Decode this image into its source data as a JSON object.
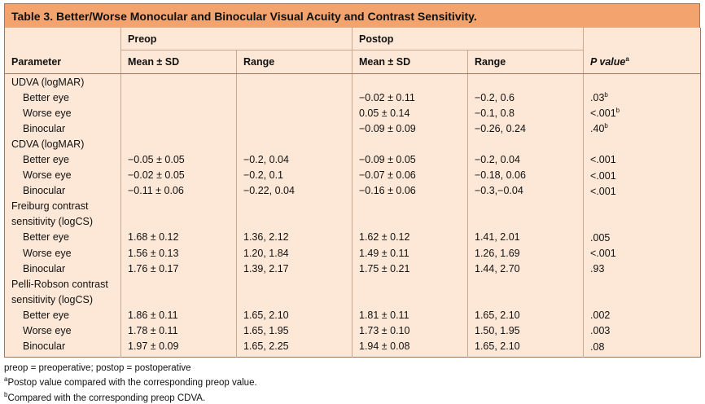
{
  "title": "Table 3.  Better/Worse Monocular and Binocular Visual Acuity and Contrast Sensitivity.",
  "header": {
    "preop": "Preop",
    "postop": "Postop",
    "parameter": "Parameter",
    "mean_sd": "Mean ± SD",
    "range": "Range",
    "p_value": "P value",
    "p_value_sup": "a"
  },
  "rows": [
    {
      "param": "UDVA (logMAR)",
      "group": true,
      "pre_mean": "",
      "pre_range": "",
      "post_mean": "",
      "post_range": "",
      "p": "",
      "p_sup": ""
    },
    {
      "param": "Better eye",
      "group": false,
      "pre_mean": "",
      "pre_range": "",
      "post_mean": "−0.02 ± 0.11",
      "post_range": "−0.2, 0.6",
      "p": ".03",
      "p_sup": "b"
    },
    {
      "param": "Worse eye",
      "group": false,
      "pre_mean": "",
      "pre_range": "",
      "post_mean": "0.05 ± 0.14",
      "post_range": "−0.1, 0.8",
      "p": "<.001",
      "p_sup": "b"
    },
    {
      "param": "Binocular",
      "group": false,
      "pre_mean": "",
      "pre_range": "",
      "post_mean": "−0.09 ± 0.09",
      "post_range": "−0.26, 0.24",
      "p": ".40",
      "p_sup": "b"
    },
    {
      "param": "CDVA (logMAR)",
      "group": true,
      "pre_mean": "",
      "pre_range": "",
      "post_mean": "",
      "post_range": "",
      "p": "",
      "p_sup": ""
    },
    {
      "param": "Better eye",
      "group": false,
      "pre_mean": "−0.05 ± 0.05",
      "pre_range": "−0.2, 0.04",
      "post_mean": "−0.09 ± 0.05",
      "post_range": "−0.2, 0.04",
      "p": "<.001",
      "p_sup": ""
    },
    {
      "param": "Worse eye",
      "group": false,
      "pre_mean": "−0.02 ± 0.05",
      "pre_range": "−0.2, 0.1",
      "post_mean": "−0.07 ± 0.06",
      "post_range": "−0.18, 0.06",
      "p": "<.001",
      "p_sup": ""
    },
    {
      "param": "Binocular",
      "group": false,
      "pre_mean": "−0.11 ± 0.06",
      "pre_range": "−0.22, 0.04",
      "post_mean": "−0.16 ± 0.06",
      "post_range": "−0.3,−0.04",
      "p": "<.001",
      "p_sup": ""
    },
    {
      "param": "Freiburg contrast",
      "group": true,
      "pre_mean": "",
      "pre_range": "",
      "post_mean": "",
      "post_range": "",
      "p": "",
      "p_sup": ""
    },
    {
      "param": "sensitivity (logCS)",
      "group": "cont",
      "pre_mean": "",
      "pre_range": "",
      "post_mean": "",
      "post_range": "",
      "p": "",
      "p_sup": ""
    },
    {
      "param": "Better eye",
      "group": false,
      "pre_mean": "1.68 ± 0.12",
      "pre_range": "1.36, 2.12",
      "post_mean": "1.62 ± 0.12",
      "post_range": "1.41, 2.01",
      "p": ".005",
      "p_sup": ""
    },
    {
      "param": "Worse eye",
      "group": false,
      "pre_mean": "1.56 ± 0.13",
      "pre_range": "1.20, 1.84",
      "post_mean": "1.49 ± 0.11",
      "post_range": "1.26, 1.69",
      "p": "<.001",
      "p_sup": ""
    },
    {
      "param": "Binocular",
      "group": false,
      "pre_mean": "1.76 ± 0.17",
      "pre_range": "1.39, 2.17",
      "post_mean": "1.75 ± 0.21",
      "post_range": "1.44, 2.70",
      "p": ".93",
      "p_sup": ""
    },
    {
      "param": "Pelli-Robson contrast",
      "group": true,
      "pre_mean": "",
      "pre_range": "",
      "post_mean": "",
      "post_range": "",
      "p": "",
      "p_sup": ""
    },
    {
      "param": "sensitivity (logCS)",
      "group": "cont",
      "pre_mean": "",
      "pre_range": "",
      "post_mean": "",
      "post_range": "",
      "p": "",
      "p_sup": ""
    },
    {
      "param": "Better eye",
      "group": false,
      "pre_mean": "1.86 ± 0.11",
      "pre_range": "1.65, 2.10",
      "post_mean": "1.81 ± 0.11",
      "post_range": "1.65, 2.10",
      "p": ".002",
      "p_sup": ""
    },
    {
      "param": "Worse eye",
      "group": false,
      "pre_mean": "1.78 ± 0.11",
      "pre_range": "1.65, 1.95",
      "post_mean": "1.73 ± 0.10",
      "post_range": "1.50, 1.95",
      "p": ".003",
      "p_sup": ""
    },
    {
      "param": "Binocular",
      "group": false,
      "pre_mean": "1.97 ± 0.09",
      "pre_range": "1.65, 2.25",
      "post_mean": "1.94 ± 0.08",
      "post_range": "1.65, 2.10",
      "p": ".08",
      "p_sup": ""
    }
  ],
  "footnotes": {
    "abbrev": "preop = preoperative; postop = postoperative",
    "a_mark": "a",
    "a_text": "Postop value compared with the corresponding preop value.",
    "b_mark": "b",
    "b_text": "Compared with the corresponding preop CDVA."
  },
  "colors": {
    "title_bg": "#f3a36e",
    "table_bg": "#fde8d7",
    "rule": "#9d7a5f"
  }
}
